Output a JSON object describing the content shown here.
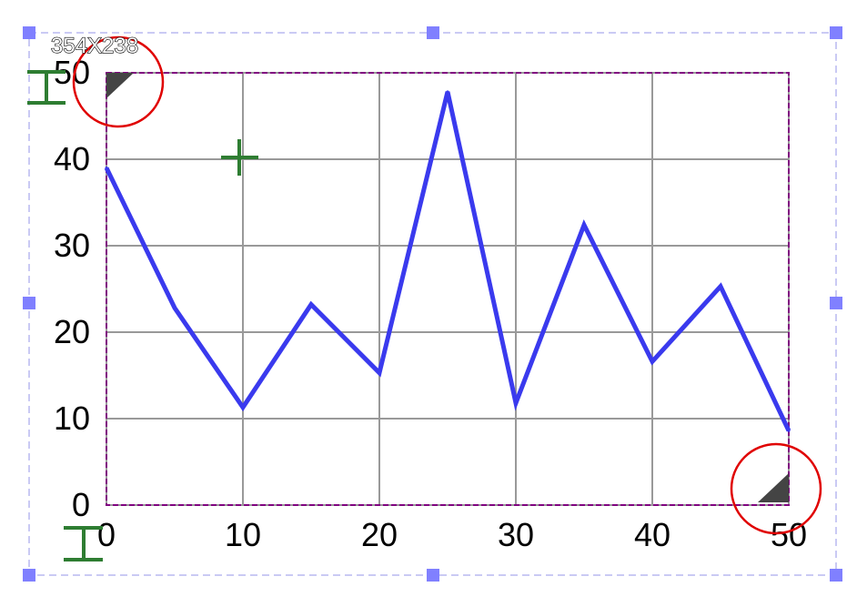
{
  "size_readout": "354X238",
  "colors": {
    "series": "#3a3aee",
    "grid": "#999999",
    "plot_border": "#800080",
    "selection_outline": "#b8b8f0",
    "selection_handle": "#8080ff",
    "annotation_circle": "#e00000",
    "cursor": "#2e7d32",
    "corner_marker": "#444444"
  },
  "icons": {
    "cursor_top": "i-beam-cursor-icon",
    "cursor_bottom": "i-beam-cursor-icon",
    "crosshair": "crosshair-icon"
  },
  "chart_data": {
    "type": "line",
    "title": "",
    "xlabel": "",
    "ylabel": "",
    "xlim": [
      0,
      50
    ],
    "ylim": [
      0,
      50
    ],
    "x_ticks": [
      "0",
      "10",
      "20",
      "30",
      "40",
      "50"
    ],
    "y_ticks": [
      "0",
      "10",
      "20",
      "30",
      "40",
      "50"
    ],
    "grid": true,
    "legend": "none",
    "series": [
      {
        "x": [
          0,
          5,
          10,
          15,
          20,
          25,
          30,
          35,
          40,
          45,
          50
        ],
        "y": [
          39,
          22.8,
          11.3,
          23.2,
          15.3,
          47.8,
          11.8,
          32.4,
          16.6,
          25.3,
          8.6
        ]
      }
    ]
  }
}
